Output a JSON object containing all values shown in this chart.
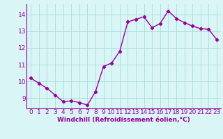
{
  "x": [
    0,
    1,
    2,
    3,
    4,
    5,
    6,
    7,
    8,
    9,
    10,
    11,
    12,
    13,
    14,
    15,
    16,
    17,
    18,
    19,
    20,
    21,
    22,
    23
  ],
  "y": [
    10.2,
    9.9,
    9.6,
    9.2,
    8.8,
    8.85,
    8.75,
    8.6,
    9.4,
    10.9,
    11.1,
    11.8,
    13.55,
    13.7,
    13.85,
    13.2,
    13.45,
    14.2,
    13.75,
    13.5,
    13.3,
    13.15,
    13.1,
    12.5
  ],
  "line_color": "#990099",
  "marker": "D",
  "markersize": 2.2,
  "linewidth": 1.0,
  "bg_color": "#d9f5f5",
  "grid_color": "#aadddd",
  "xlabel": "Windchill (Refroidissement éolien,°C)",
  "xlabel_fontsize": 6.5,
  "tick_fontsize": 6.5,
  "xlim": [
    -0.5,
    23.5
  ],
  "ylim": [
    8.4,
    14.6
  ],
  "yticks": [
    9,
    10,
    11,
    12,
    13,
    14
  ],
  "xticks": [
    0,
    1,
    2,
    3,
    4,
    5,
    6,
    7,
    8,
    9,
    10,
    11,
    12,
    13,
    14,
    15,
    16,
    17,
    18,
    19,
    20,
    21,
    22,
    23
  ]
}
